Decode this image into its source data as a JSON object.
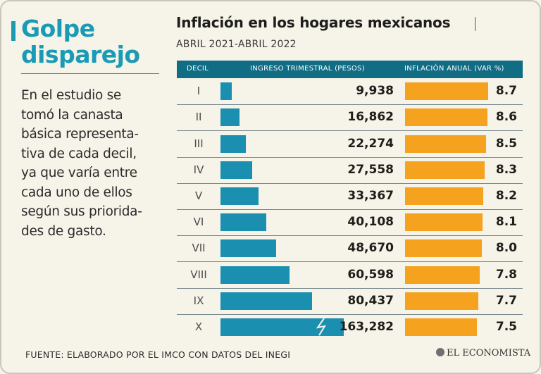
{
  "headline": {
    "line1": "Golpe",
    "line2": "disparejo"
  },
  "intro_lines": [
    "En el estudio se",
    "tomó la canasta",
    "básica representa-",
    "tiva de cada decil,",
    "ya que varía entre",
    "cada uno de ellos",
    "según sus priorida-",
    "des de gasto."
  ],
  "colors": {
    "accent": "#1a9bb5",
    "header": "#116d84",
    "income_bar": "#1a8fb0",
    "inflation_bar": "#f5a21f",
    "background": "#f6f3e8"
  },
  "footer": {
    "source": "FUENTE: ELABORADO POR EL IMCO CON DATOS DEL INEGI",
    "brand": "EL ECONOMISTA",
    "brand_icon": "el-economista-logo"
  },
  "chart_data": {
    "type": "bar",
    "title": "Inflación en los hogares mexicanos",
    "subtitle": "ABRIL 2021-ABRIL 2022",
    "columns": [
      "DECIL",
      "INGRESO TRIMESTRAL (PESOS)",
      "INFLACIÓN ANUAL (VAR %)"
    ],
    "categories": [
      "I",
      "II",
      "III",
      "IV",
      "V",
      "VI",
      "VII",
      "VIII",
      "IX",
      "X"
    ],
    "series": [
      {
        "values": [
          9938,
          16862,
          22274,
          27558,
          33367,
          40108,
          48670,
          60598,
          80437,
          163282
        ],
        "labels": [
          "9,938",
          "16,862",
          "22,274",
          "27,558",
          "33,367",
          "40,108",
          "48,670",
          "60,598",
          "80,437",
          "163,282"
        ],
        "axis_break_on": "X"
      },
      {
        "values": [
          8.7,
          8.6,
          8.5,
          8.3,
          8.2,
          8.1,
          8.0,
          7.8,
          7.7,
          7.5
        ],
        "labels": [
          "8.7",
          "8.6",
          "8.5",
          "8.3",
          "8.2",
          "8.1",
          "8.0",
          "7.8",
          "7.7",
          "7.5"
        ]
      }
    ],
    "grid": false,
    "legend": "none"
  }
}
